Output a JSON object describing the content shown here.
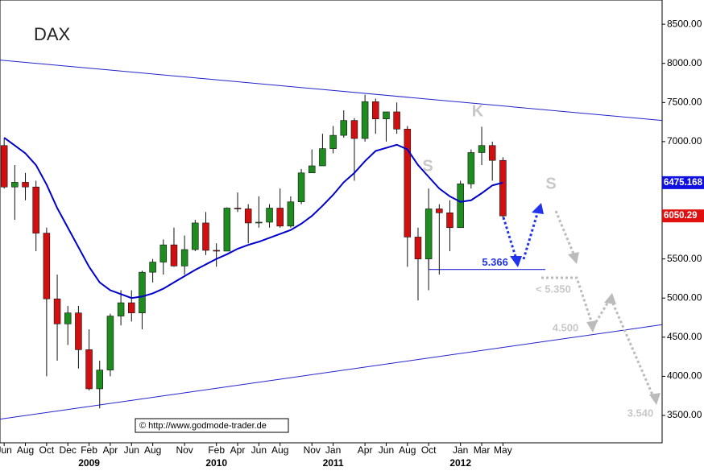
{
  "chart_data": {
    "type": "candlestick",
    "title": "DAX",
    "xlim": [
      "2008-05",
      "2013-08"
    ],
    "ylim": [
      3150,
      8810
    ],
    "yticks": [
      {
        "value": 3500,
        "label": "3500.00"
      },
      {
        "value": 4000,
        "label": "4000.00"
      },
      {
        "value": 4500,
        "label": "4500.00"
      },
      {
        "value": 5000,
        "label": "5000.00"
      },
      {
        "value": 5500,
        "label": "5500.00"
      },
      {
        "value": 6000,
        "label": "6000.00"
      },
      {
        "value": 6500,
        "label": "6500.00"
      },
      {
        "value": 7000,
        "label": "7000.00"
      },
      {
        "value": 7500,
        "label": "7500.00"
      },
      {
        "value": 8000,
        "label": "8000.00"
      },
      {
        "value": 8500,
        "label": "8500.00"
      }
    ],
    "xticks": [
      {
        "value": "2008-06",
        "label": "Jun"
      },
      {
        "value": "2008-08",
        "label": "Aug"
      },
      {
        "value": "2008-10",
        "label": "Oct"
      },
      {
        "value": "2008-12",
        "label": "Dec"
      },
      {
        "value": "2009-02",
        "label": "Feb"
      },
      {
        "value": "2009-04",
        "label": "Apr"
      },
      {
        "value": "2009-06",
        "label": "Jun"
      },
      {
        "value": "2009-08",
        "label": "Aug"
      },
      {
        "value": "2009-11",
        "label": "Nov"
      },
      {
        "value": "2010-02",
        "label": "Feb"
      },
      {
        "value": "2010-04",
        "label": "Apr"
      },
      {
        "value": "2010-06",
        "label": "Jun"
      },
      {
        "value": "2010-08",
        "label": "Aug"
      },
      {
        "value": "2010-11",
        "label": "Nov"
      },
      {
        "value": "2011-01",
        "label": "Jan"
      },
      {
        "value": "2011-04",
        "label": "Apr"
      },
      {
        "value": "2011-06",
        "label": "Jun"
      },
      {
        "value": "2011-08",
        "label": "Aug"
      },
      {
        "value": "2011-10",
        "label": "Oct"
      },
      {
        "value": "2012-01",
        "label": "Jan"
      },
      {
        "value": "2012-03",
        "label": "Mar"
      },
      {
        "value": "2012-05",
        "label": "May"
      }
    ],
    "year_labels": [
      {
        "value": "2009-02",
        "label": "2009"
      },
      {
        "value": "2010-02",
        "label": "2010"
      },
      {
        "value": "2011-01",
        "label": "2011"
      },
      {
        "value": "2012-01",
        "label": "2012"
      }
    ],
    "up_color": "#1e8c1e",
    "down_color": "#d01010",
    "candles": {
      "x": [
        "2008-06",
        "2008-07",
        "2008-08",
        "2008-09",
        "2008-10",
        "2008-11",
        "2008-12",
        "2009-01",
        "2009-02",
        "2009-03",
        "2009-04",
        "2009-05",
        "2009-06",
        "2009-07",
        "2009-08",
        "2009-09",
        "2009-10",
        "2009-11",
        "2009-12",
        "2010-01",
        "2010-02",
        "2010-03",
        "2010-04",
        "2010-05",
        "2010-06",
        "2010-07",
        "2010-08",
        "2010-09",
        "2010-10",
        "2010-11",
        "2010-12",
        "2011-01",
        "2011-02",
        "2011-03",
        "2011-04",
        "2011-05",
        "2011-06",
        "2011-07",
        "2011-08",
        "2011-09",
        "2011-10",
        "2011-11",
        "2011-12",
        "2012-01",
        "2012-02",
        "2012-03",
        "2012-04",
        "2012-05"
      ],
      "open": [
        6950,
        6420,
        6480,
        6420,
        5830,
        4990,
        4670,
        4810,
        4340,
        3840,
        4080,
        4770,
        4940,
        4810,
        5330,
        5460,
        5680,
        5410,
        5620,
        5960,
        5610,
        5600,
        6150,
        6140,
        5960,
        5970,
        6150,
        5920,
        6230,
        6600,
        6690,
        6910,
        7080,
        7270,
        7040,
        7510,
        7290,
        7380,
        7160,
        5780,
        5500,
        6140,
        6090,
        5900,
        6460,
        6860,
        6950,
        6760
      ],
      "high": [
        7050,
        6700,
        6600,
        6500,
        5900,
        5300,
        4900,
        4900,
        4600,
        4200,
        4800,
        5100,
        5100,
        5350,
        5500,
        5750,
        5900,
        5800,
        6000,
        6100,
        5700,
        6160,
        6350,
        6200,
        6300,
        6200,
        6400,
        6300,
        6650,
        6900,
        7100,
        7200,
        7400,
        7300,
        7600,
        7550,
        7350,
        7500,
        7200,
        5900,
        6400,
        6200,
        6250,
        6500,
        6900,
        7190,
        7000,
        6800
      ],
      "low": [
        6400,
        6000,
        6250,
        5600,
        4000,
        4200,
        4400,
        4100,
        3820,
        3590,
        4000,
        4650,
        4700,
        4600,
        5200,
        5300,
        5400,
        5300,
        5600,
        5550,
        5400,
        5600,
        6100,
        5700,
        5900,
        5900,
        5900,
        5900,
        6200,
        6600,
        6700,
        6850,
        7050,
        6500,
        7000,
        7100,
        7000,
        7100,
        5400,
        4970,
        5100,
        5300,
        5600,
        5900,
        6400,
        6700,
        6500,
        6000
      ],
      "close": [
        6420,
        6480,
        6420,
        5830,
        4990,
        4670,
        4810,
        4340,
        3840,
        4080,
        4770,
        4940,
        4810,
        5330,
        5460,
        5680,
        5410,
        5620,
        5960,
        5610,
        5600,
        6150,
        6140,
        5960,
        5970,
        6150,
        5920,
        6230,
        6600,
        6690,
        6910,
        7080,
        7270,
        7040,
        7510,
        7290,
        7380,
        7160,
        5780,
        5500,
        6140,
        6090,
        5900,
        6460,
        6860,
        6950,
        6760,
        6050
      ]
    },
    "moving_average": {
      "color": "#0000cc",
      "values": [
        7050,
        6950,
        6850,
        6700,
        6450,
        6150,
        5900,
        5650,
        5400,
        5200,
        5100,
        5050,
        5000,
        5020,
        5060,
        5120,
        5200,
        5280,
        5360,
        5430,
        5500,
        5560,
        5630,
        5680,
        5720,
        5770,
        5820,
        5870,
        5950,
        6050,
        6180,
        6320,
        6480,
        6600,
        6750,
        6880,
        6920,
        6960,
        6900,
        6700,
        6550,
        6400,
        6300,
        6230,
        6250,
        6340,
        6440,
        6475
      ]
    },
    "trendlines": [
      {
        "x": [
          "2008-05",
          "2013-08"
        ],
        "y": [
          8050,
          7270
        ]
      },
      {
        "x": [
          "2008-05",
          "2013-08"
        ],
        "y": [
          3440,
          4660
        ]
      }
    ],
    "support": {
      "x": [
        "2011-10",
        "2012-09"
      ],
      "y": 5366,
      "label": "5.366"
    },
    "last_labels": [
      {
        "value": 6475.168,
        "color": "#1010e0"
      },
      {
        "value": 6050.29,
        "color": "#e01010"
      }
    ],
    "annotations": [
      "S",
      "K",
      "S",
      "< 5.350",
      "4.500",
      "3.540"
    ],
    "copyright": "© http://www.godmode-trader.de"
  }
}
